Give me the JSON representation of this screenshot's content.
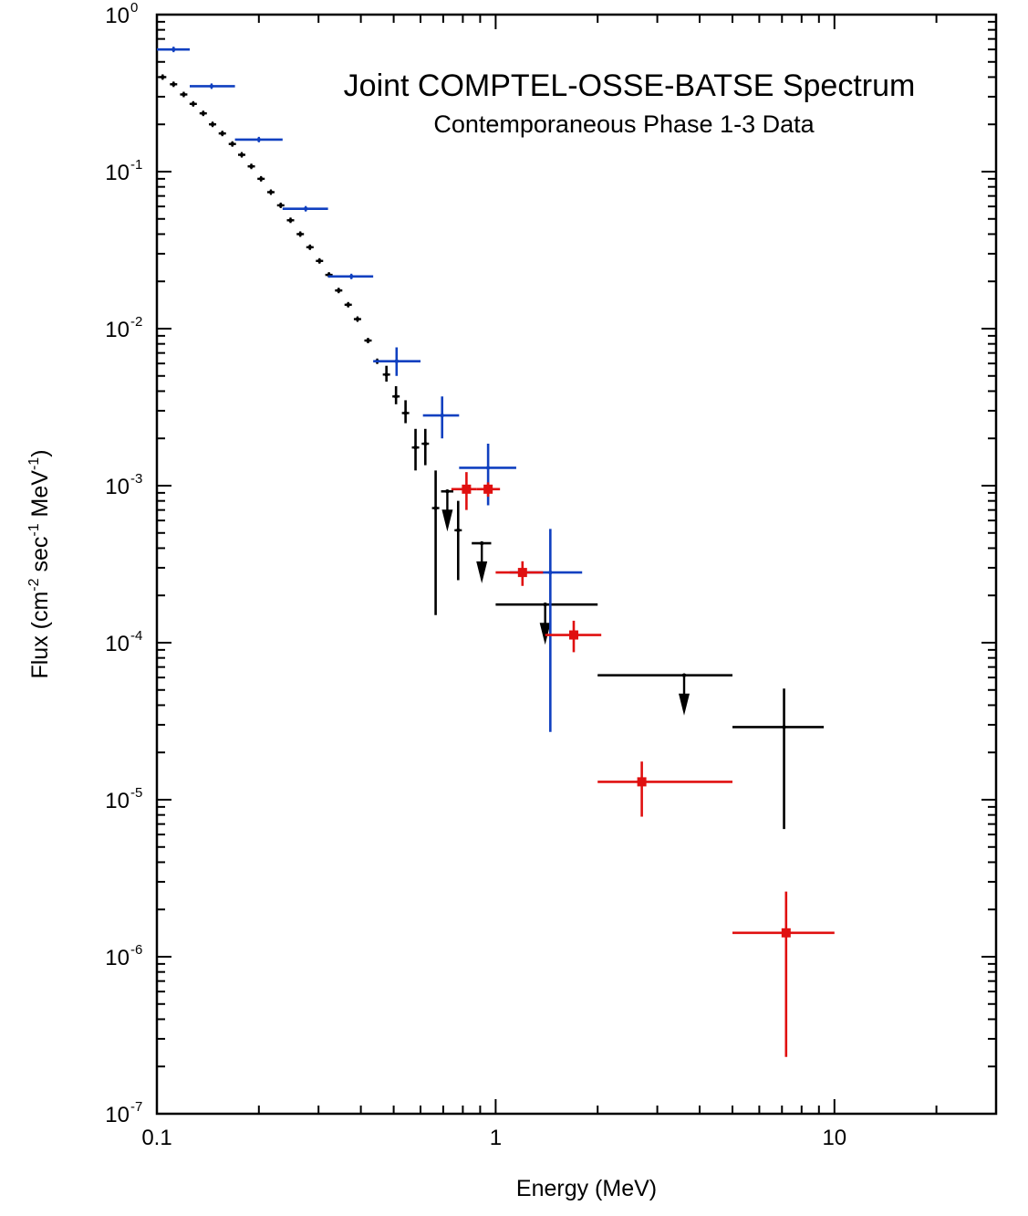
{
  "chart_data": {
    "type": "scatter",
    "title": "Joint COMPTEL-OSSE-BATSE Spectrum",
    "subtitle": "Contemporaneous Phase 1-3 Data",
    "xlabel": "Energy (MeV)",
    "ylabel_parts": {
      "a": "Flux (cm",
      "b": "-2",
      "c": " sec",
      "d": "-1",
      "e": " MeV",
      "f": "-1",
      "g": ")"
    },
    "xscale": "log",
    "yscale": "log",
    "xlim": [
      0.1,
      30
    ],
    "ylim": [
      1e-07,
      1
    ],
    "grid": false,
    "xticks": [
      {
        "value": 0.1,
        "label": "0.1"
      },
      {
        "value": 1,
        "label": "1"
      },
      {
        "value": 10,
        "label": "10"
      }
    ],
    "yticks": [
      {
        "value": 1,
        "base": "10",
        "exp": "0"
      },
      {
        "value": 0.1,
        "base": "10",
        "exp": "-1"
      },
      {
        "value": 0.01,
        "base": "10",
        "exp": "-2"
      },
      {
        "value": 0.001,
        "base": "10",
        "exp": "-3"
      },
      {
        "value": 0.0001,
        "base": "10",
        "exp": "-4"
      },
      {
        "value": 1e-05,
        "base": "10",
        "exp": "-5"
      },
      {
        "value": 1e-06,
        "base": "10",
        "exp": "-6"
      },
      {
        "value": 1e-07,
        "base": "10",
        "exp": "-7"
      }
    ],
    "series": [
      {
        "color": "#000000",
        "marker": "dot",
        "points": [
          {
            "x": 0.104,
            "y": 0.4
          },
          {
            "x": 0.112,
            "y": 0.36
          },
          {
            "x": 0.12,
            "y": 0.31
          },
          {
            "x": 0.128,
            "y": 0.27
          },
          {
            "x": 0.137,
            "y": 0.235
          },
          {
            "x": 0.146,
            "y": 0.2
          },
          {
            "x": 0.156,
            "y": 0.175
          },
          {
            "x": 0.167,
            "y": 0.15
          },
          {
            "x": 0.178,
            "y": 0.128
          },
          {
            "x": 0.19,
            "y": 0.108
          },
          {
            "x": 0.203,
            "y": 0.09
          },
          {
            "x": 0.217,
            "y": 0.074
          },
          {
            "x": 0.232,
            "y": 0.061
          },
          {
            "x": 0.248,
            "y": 0.049
          },
          {
            "x": 0.265,
            "y": 0.04
          },
          {
            "x": 0.283,
            "y": 0.033
          },
          {
            "x": 0.302,
            "y": 0.027
          },
          {
            "x": 0.322,
            "y": 0.022
          },
          {
            "x": 0.344,
            "y": 0.0175
          },
          {
            "x": 0.367,
            "y": 0.0142
          },
          {
            "x": 0.391,
            "y": 0.0115
          },
          {
            "x": 0.42,
            "y": 0.0084
          },
          {
            "x": 0.447,
            "y": 0.0062
          },
          {
            "x": 0.476,
            "y": 0.0051,
            "ylo": 0.0046,
            "yhi": 0.0058
          },
          {
            "x": 0.508,
            "y": 0.0037,
            "ylo": 0.0033,
            "yhi": 0.0043
          },
          {
            "x": 0.542,
            "y": 0.0029,
            "ylo": 0.0025,
            "yhi": 0.0035
          },
          {
            "x": 0.58,
            "y": 0.00175,
            "ylo": 0.00125,
            "yhi": 0.0023
          },
          {
            "x": 0.62,
            "y": 0.00185,
            "ylo": 0.00135,
            "yhi": 0.0023
          },
          {
            "x": 0.665,
            "y": 0.00072,
            "ylo": 0.00015,
            "yhi": 0.00125
          },
          {
            "x": 0.775,
            "y": 0.00052,
            "ylo": 0.00025,
            "yhi": 0.0008
          },
          {
            "x": 1.4,
            "y": 0.000175,
            "xlo": 1.0,
            "xhi": 2.0,
            "upper_limit": true
          },
          {
            "x": 3.6,
            "y": 6.2e-05,
            "xlo": 2.0,
            "xhi": 5.0,
            "upper_limit": true
          },
          {
            "x": 7.1,
            "y": 2.9e-05,
            "xlo": 5.0,
            "xhi": 9.3,
            "ylo": 6.5e-06,
            "yhi": 5.1e-05
          },
          {
            "x": 0.72,
            "y": 0.00092,
            "xlo": 0.69,
            "xhi": 0.75,
            "upper_limit": true
          },
          {
            "x": 0.91,
            "y": 0.00043,
            "xlo": 0.85,
            "xhi": 0.97,
            "upper_limit": true
          }
        ]
      },
      {
        "color": "#1040c0",
        "marker": "dot",
        "points": [
          {
            "x": 0.112,
            "y": 0.6,
            "xlo": 0.1,
            "xhi": 0.125
          },
          {
            "x": 0.145,
            "y": 0.35,
            "xlo": 0.125,
            "xhi": 0.17
          },
          {
            "x": 0.2,
            "y": 0.16,
            "xlo": 0.17,
            "xhi": 0.235
          },
          {
            "x": 0.275,
            "y": 0.058,
            "xlo": 0.235,
            "xhi": 0.32
          },
          {
            "x": 0.375,
            "y": 0.0215,
            "xlo": 0.32,
            "xhi": 0.435
          },
          {
            "x": 0.51,
            "y": 0.0062,
            "xlo": 0.435,
            "xhi": 0.6,
            "ylo": 0.005,
            "yhi": 0.0076
          },
          {
            "x": 0.695,
            "y": 0.0028,
            "xlo": 0.61,
            "xhi": 0.78,
            "ylo": 0.002,
            "yhi": 0.0037
          },
          {
            "x": 0.95,
            "y": 0.0013,
            "xlo": 0.78,
            "xhi": 1.15,
            "ylo": 0.00075,
            "yhi": 0.00185
          },
          {
            "x": 1.45,
            "y": 0.00028,
            "xlo": 1.1,
            "xhi": 1.8,
            "ylo": 2.7e-05,
            "yhi": 0.00053
          }
        ]
      },
      {
        "color": "#e01010",
        "marker": "square",
        "points": [
          {
            "x": 0.82,
            "y": 0.00095,
            "xlo": 0.74,
            "xhi": 0.88,
            "ylo": 0.0007,
            "yhi": 0.00122
          },
          {
            "x": 0.95,
            "y": 0.00095,
            "xlo": 0.88,
            "xhi": 1.03,
            "ylo": 0.00085,
            "yhi": 0.00105
          },
          {
            "x": 1.2,
            "y": 0.00028,
            "xlo": 1.0,
            "xhi": 1.38,
            "ylo": 0.00023,
            "yhi": 0.00033
          },
          {
            "x": 1.7,
            "y": 0.000112,
            "xlo": 1.4,
            "xhi": 2.05,
            "ylo": 8.7e-05,
            "yhi": 0.000138
          },
          {
            "x": 2.7,
            "y": 1.3e-05,
            "xlo": 2.0,
            "xhi": 5.0,
            "ylo": 7.8e-06,
            "yhi": 1.75e-05
          },
          {
            "x": 7.2,
            "y": 1.42e-06,
            "xlo": 5.0,
            "xhi": 10.0,
            "ylo": 2.3e-07,
            "yhi": 2.6e-06
          }
        ]
      }
    ]
  }
}
